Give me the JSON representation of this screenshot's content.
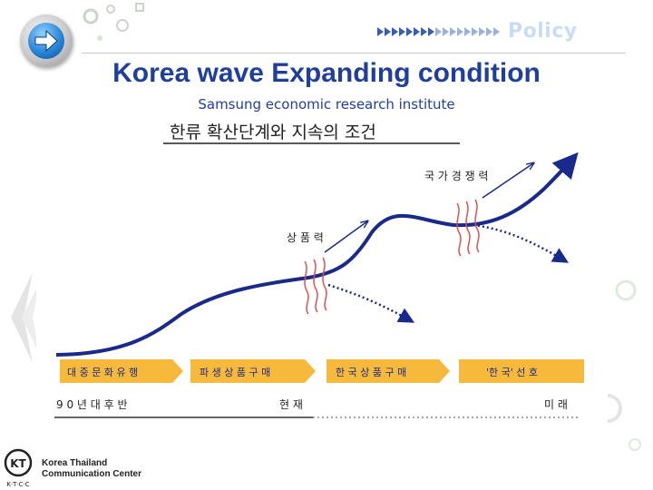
{
  "header": {
    "section": "Policy",
    "title": "Korea wave Expanding condition",
    "subtitle": "Samsung economic research institute"
  },
  "diagram": {
    "heading": "한류 확산단계와 지속의 조건",
    "labels": {
      "national_competitiveness": "국 가 경 쟁 력",
      "product_power": "상 품 력"
    },
    "stages": [
      "대 중 문 화 유 행",
      "파 생 상 품 구 매",
      "한 국 상 품 구 매",
      "'한 국' 선 호"
    ],
    "timeline": {
      "start": "9 0 년 대  후 반",
      "middle": "현 재",
      "end": "미 래"
    }
  },
  "logo": {
    "badge": "KT",
    "badge_sub": "K·T·C·C",
    "line1": "Korea Thailand",
    "line2": "Communication Center"
  },
  "colors": {
    "title": "#1f3f9a",
    "stage_fill": "#f6b93b",
    "stage_text": "#1a2a8a",
    "curve": "#1a2a8a",
    "wave": "#e05050"
  }
}
